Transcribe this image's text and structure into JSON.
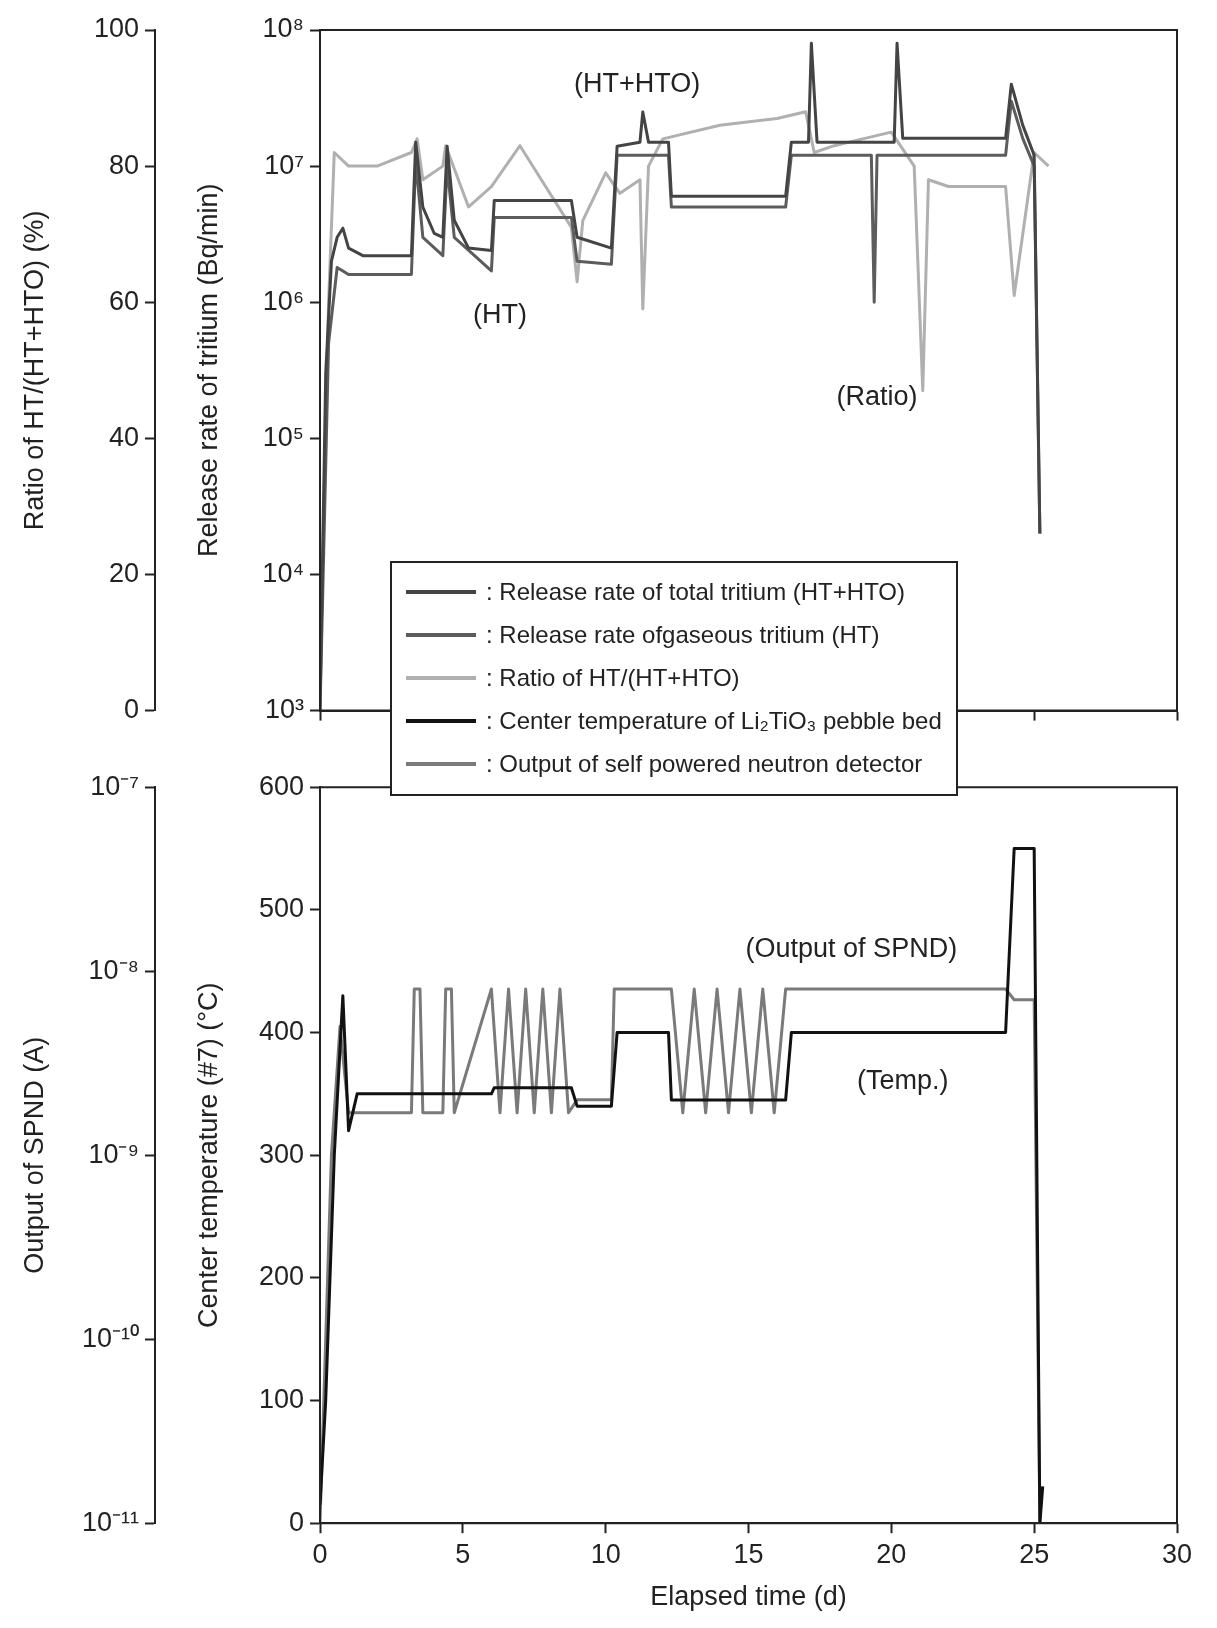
{
  "chart_data": [
    {
      "type": "line",
      "ylabel": "Release rate of tritium (Bq/min)",
      "y2label": "Ratio of HT/(HT+HTO) (%)",
      "xlim": [
        0,
        30
      ],
      "xticks": [
        0,
        5,
        10,
        15,
        20,
        25,
        30
      ],
      "ylim": [
        1000,
        100000000
      ],
      "yticks": [
        {
          "value": 1000,
          "label": "10³"
        },
        {
          "value": 10000,
          "label": "10⁴"
        },
        {
          "value": 100000,
          "label": "10⁵"
        },
        {
          "value": 1000000,
          "label": "10⁶"
        },
        {
          "value": 10000000,
          "label": "10⁷"
        },
        {
          "value": 100000000,
          "label": "10⁸"
        }
      ],
      "y2lim": [
        0,
        100
      ],
      "y2ticks": [
        0,
        20,
        40,
        60,
        80,
        100
      ],
      "log": "y",
      "grid": false,
      "legend": "bottom",
      "tick_labels": "y",
      "series": [
        {
          "name": ": Release rate of total tritium (HT+HTO)",
          "color": "#444444",
          "x": [
            0,
            0.2,
            0.4,
            0.6,
            0.8,
            1.0,
            1.5,
            3.2,
            3.35,
            3.6,
            4.0,
            4.3,
            4.45,
            4.7,
            5.2,
            6.0,
            6.1,
            8.8,
            9.0,
            10.2,
            10.4,
            11.2,
            11.3,
            11.5,
            12.2,
            12.3,
            16.3,
            16.5,
            17.1,
            17.2,
            17.4,
            20.1,
            20.2,
            20.4,
            24.0,
            24.2,
            24.6,
            25.0,
            25.2
          ],
          "values": [
            1000,
            300000,
            2000000,
            3000000,
            3500000,
            2500000,
            2200000,
            2200000,
            15000000,
            5000000,
            3200000,
            3000000,
            14000000,
            4000000,
            2500000,
            2400000,
            5600000,
            5600000,
            3000000,
            2500000,
            14000000,
            15000000,
            25000000,
            15000000,
            15000000,
            6000000,
            6000000,
            15000000,
            15000000,
            80000000,
            15000000,
            15000000,
            80000000,
            16000000,
            16000000,
            40000000,
            20000000,
            12000000,
            20000
          ]
        },
        {
          "name": ": Release rate ofgaseous tritium (HT)",
          "color": "#5c5c5c",
          "x": [
            0,
            0.3,
            0.6,
            1.0,
            1.5,
            3.2,
            3.35,
            3.6,
            4.3,
            4.45,
            4.7,
            6.0,
            6.1,
            8.8,
            9.0,
            10.2,
            10.4,
            12.2,
            12.3,
            16.3,
            16.5,
            19.3,
            19.4,
            19.5,
            24.0,
            24.2,
            24.6,
            25.0,
            25.2
          ],
          "values": [
            1000,
            500000,
            1800000,
            1600000,
            1600000,
            1600000,
            11000000,
            3000000,
            2200000,
            10000000,
            3000000,
            1700000,
            4200000,
            4200000,
            2000000,
            1900000,
            12000000,
            12000000,
            5000000,
            5000000,
            12000000,
            12000000,
            1000000,
            12000000,
            12000000,
            30000000,
            16000000,
            10000000,
            20000
          ]
        },
        {
          "name": ": Ratio of HT/(HT+HTO)",
          "color": "#b0b0b0",
          "axis": "y2",
          "x": [
            0,
            0.3,
            0.5,
            1.0,
            2.0,
            3.2,
            3.4,
            3.6,
            4.3,
            4.4,
            5.2,
            6.0,
            7.0,
            7.6,
            8.8,
            9.0,
            9.2,
            10.0,
            10.5,
            11.2,
            11.3,
            11.5,
            12.0,
            14.0,
            16.0,
            17.0,
            17.3,
            18.0,
            19.0,
            20.0,
            20.8,
            21.1,
            21.3,
            22.0,
            24.0,
            24.3,
            24.6,
            25.0,
            25.5
          ],
          "values": [
            5,
            60,
            82,
            80,
            80,
            82,
            84,
            78,
            80,
            83,
            74,
            77,
            83,
            79,
            71,
            63,
            72,
            79,
            76,
            78,
            59,
            80,
            84,
            86,
            87,
            88,
            82,
            83,
            84,
            85,
            80,
            47,
            78,
            77,
            77,
            61,
            70,
            82,
            80
          ]
        }
      ],
      "annotations": [
        "(HT+HTO)",
        "(HT)",
        "(Ratio)"
      ]
    },
    {
      "type": "line",
      "xlabel": "Elapsed time (d)",
      "ylabel": "Center temperature (#7) (°C)",
      "y2label": "Output of SPND (A)",
      "xlim": [
        0,
        30
      ],
      "xticks": [
        0,
        5,
        10,
        15,
        20,
        25,
        30
      ],
      "ylim": [
        0,
        600
      ],
      "yticks": [
        0,
        100,
        200,
        300,
        400,
        500,
        600
      ],
      "y2lim": [
        1e-11,
        1e-07
      ],
      "y2ticks": [
        {
          "value": 1e-11,
          "label": "10⁻¹¹"
        },
        {
          "value": 1e-10,
          "label": "10⁻¹⁰"
        },
        {
          "value": 1e-09,
          "label": "10⁻⁹"
        },
        {
          "value": 1e-08,
          "label": "10⁻⁸"
        },
        {
          "value": 1e-07,
          "label": "10⁻⁷"
        }
      ],
      "log": "y2",
      "grid": false,
      "legend": "top",
      "series": [
        {
          "name": ": Center temperature of Li₂TiO₃ pebble bed",
          "color": "#111111",
          "x": [
            0,
            0.2,
            0.5,
            0.8,
            1.0,
            1.3,
            6.0,
            6.1,
            8.8,
            9.0,
            10.2,
            10.4,
            12.2,
            12.3,
            16.3,
            16.5,
            24.0,
            24.3,
            25.0,
            25.2,
            25.3
          ],
          "values": [
            15,
            100,
            300,
            430,
            320,
            350,
            350,
            355,
            355,
            340,
            340,
            400,
            400,
            345,
            345,
            400,
            400,
            550,
            550,
            0,
            30
          ]
        },
        {
          "name": ": Output of self powered neutron detector",
          "color": "#7a7a7a",
          "axis": "y2",
          "x": [
            0,
            0.4,
            0.7,
            1.0,
            3.2,
            3.3,
            3.5,
            3.6,
            4.3,
            4.4,
            4.6,
            4.7,
            6.0,
            6.3,
            6.6,
            6.9,
            7.2,
            7.5,
            7.8,
            8.1,
            8.4,
            8.7,
            9.0,
            10.2,
            10.3,
            12.3,
            12.7,
            13.1,
            13.5,
            13.9,
            14.3,
            14.7,
            15.1,
            15.5,
            15.9,
            16.3,
            16.5,
            24.0,
            24.3,
            25.0,
            25.2
          ],
          "values": [
            1e-11,
            1e-09,
            5e-09,
            1.7e-09,
            1.7e-09,
            8e-09,
            8e-09,
            1.7e-09,
            1.7e-09,
            8e-09,
            8e-09,
            1.7e-09,
            8e-09,
            1.7e-09,
            8e-09,
            1.7e-09,
            8e-09,
            1.7e-09,
            8e-09,
            1.7e-09,
            8e-09,
            1.7e-09,
            2e-09,
            2e-09,
            8e-09,
            8e-09,
            1.7e-09,
            8e-09,
            1.7e-09,
            8e-09,
            1.7e-09,
            8e-09,
            1.7e-09,
            8e-09,
            1.7e-09,
            8e-09,
            8e-09,
            8e-09,
            7e-09,
            7e-09,
            1e-11
          ]
        }
      ],
      "annotations": [
        "(Output of SPND)",
        "(Temp.)"
      ]
    }
  ]
}
